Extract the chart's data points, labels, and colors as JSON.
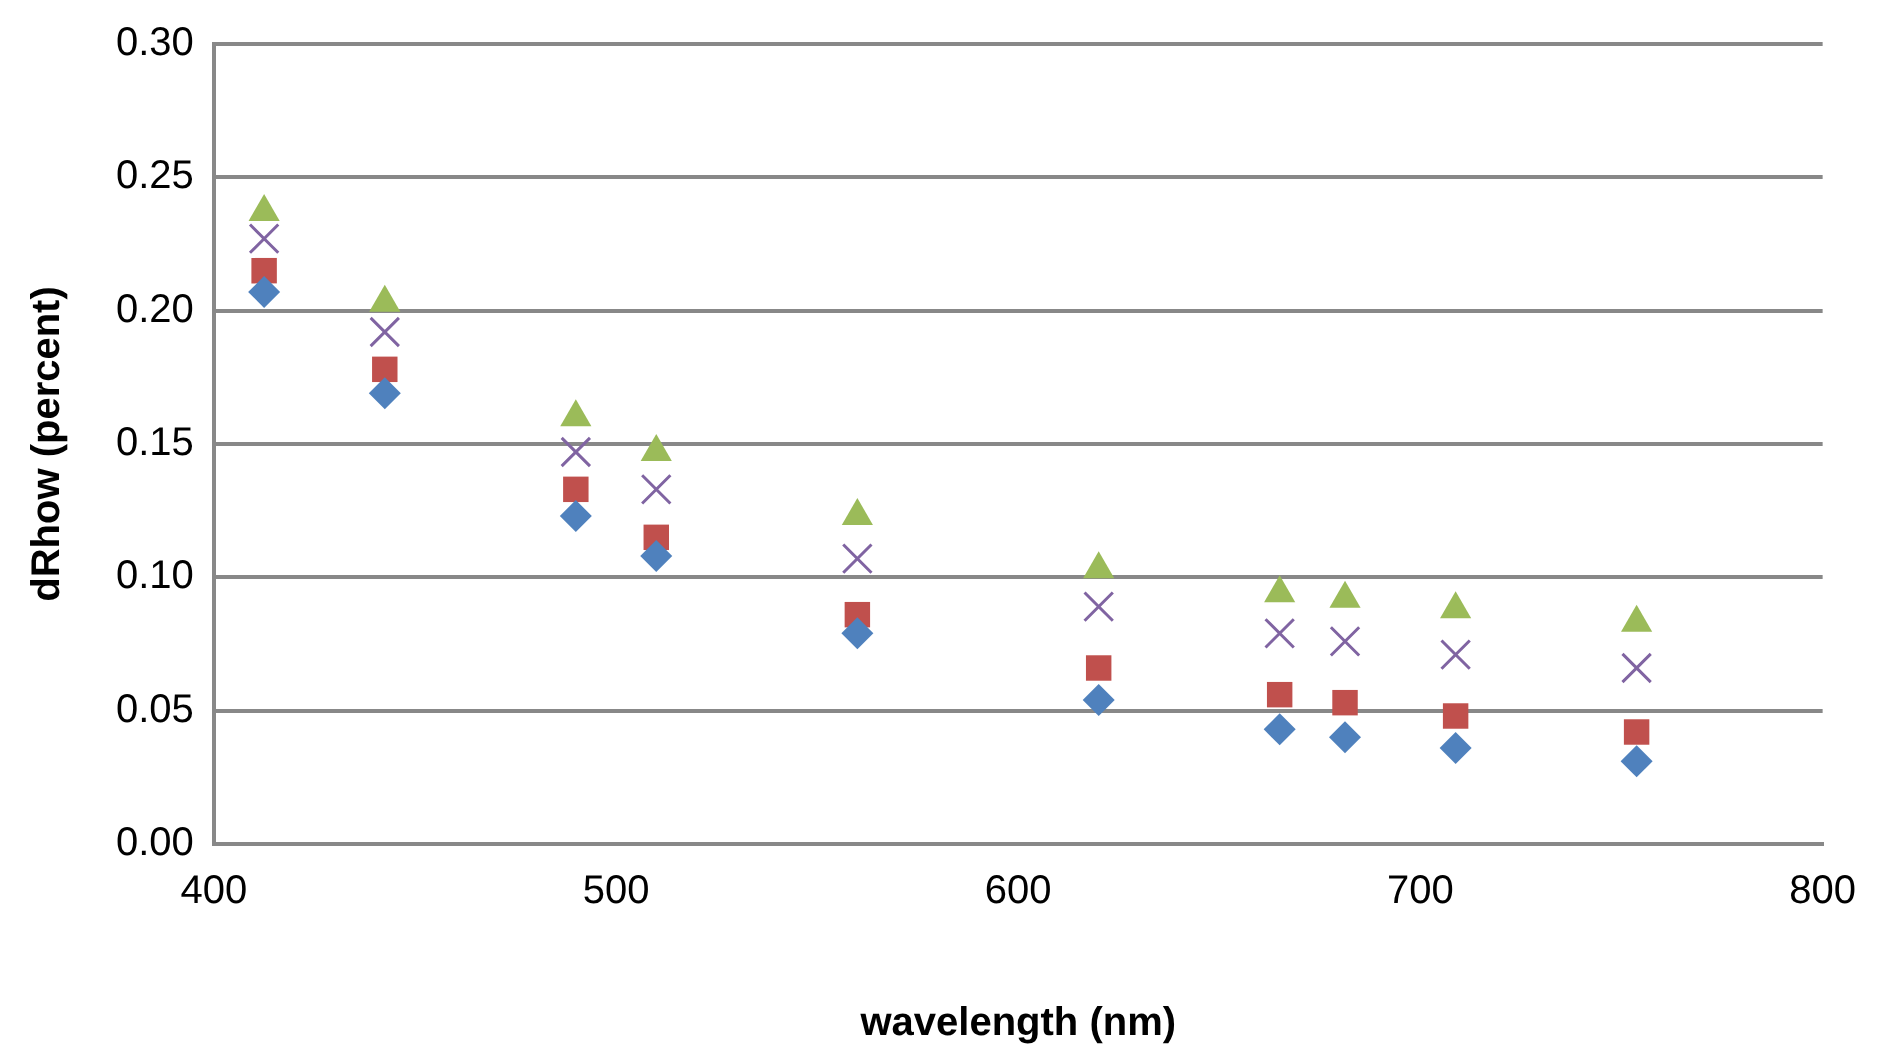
{
  "chart_data": {
    "type": "scatter",
    "xlabel": "wavelength (nm)",
    "ylabel": "dRhow (percent)",
    "x": [
      412.5,
      442.5,
      490,
      510,
      560,
      620,
      665,
      681.25,
      708.75,
      753.75
    ],
    "series": [
      {
        "color": "#4f81bd",
        "marker": "diamond",
        "values": [
          0.207,
          0.169,
          0.123,
          0.108,
          0.079,
          0.054,
          0.043,
          0.04,
          0.036,
          0.031
        ]
      },
      {
        "color": "#c0504d",
        "marker": "square",
        "values": [
          0.215,
          0.178,
          0.133,
          0.115,
          0.086,
          0.066,
          0.056,
          0.053,
          0.048,
          0.042
        ]
      },
      {
        "color": "#9bbb59",
        "marker": "triangle",
        "values": [
          0.237,
          0.203,
          0.16,
          0.147,
          0.123,
          0.103,
          0.094,
          0.092,
          0.088,
          0.083
        ]
      },
      {
        "color": "#8064a2",
        "marker": "cross",
        "values": [
          0.227,
          0.192,
          0.147,
          0.133,
          0.107,
          0.089,
          0.079,
          0.076,
          0.071,
          0.066
        ]
      }
    ],
    "xlim": [
      400,
      800
    ],
    "xticks": [
      400,
      500,
      600,
      700,
      800
    ],
    "ylim": [
      0,
      0.3
    ],
    "yticks": [
      {
        "value": 0,
        "label": "0.00"
      },
      {
        "value": 0.05,
        "label": "0.05"
      },
      {
        "value": 0.1,
        "label": "0.10"
      },
      {
        "value": 0.15,
        "label": "0.15"
      },
      {
        "value": 0.2,
        "label": "0.20"
      },
      {
        "value": 0.25,
        "label": "0.25"
      },
      {
        "value": 0.3,
        "label": "0.30"
      }
    ],
    "grid": "y",
    "legend": false
  }
}
